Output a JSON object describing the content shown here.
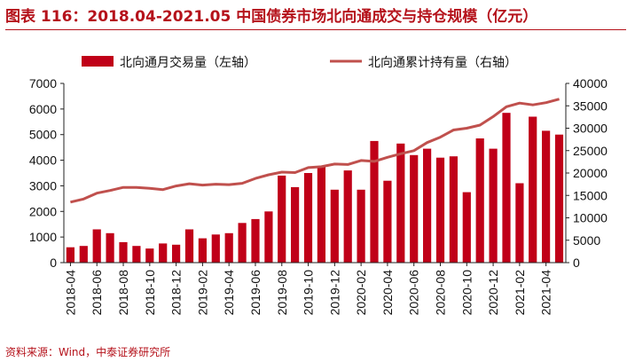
{
  "header": {
    "title": "图表 116：2018.04-2021.05 中国债券市场北向通成交与持仓规模（亿元）"
  },
  "footer": {
    "source": "资料来源：Wind，中泰证券研究所"
  },
  "colors": {
    "bar": "#c00018",
    "line": "#c0504d",
    "title": "#b5121b"
  },
  "chart_data": {
    "type": "bar+line",
    "x_tick_labels": [
      "2018-04",
      "2018-06",
      "2018-08",
      "2018-10",
      "2018-12",
      "2019-02",
      "2019-04",
      "2019-06",
      "2019-08",
      "2019-10",
      "2019-12",
      "2020-02",
      "2020-04",
      "2020-06",
      "2020-08",
      "2020-10",
      "2020-12",
      "2021-02",
      "2021-04"
    ],
    "categories": [
      "2018-04",
      "2018-05",
      "2018-06",
      "2018-07",
      "2018-08",
      "2018-09",
      "2018-10",
      "2018-11",
      "2018-12",
      "2019-01",
      "2019-02",
      "2019-03",
      "2019-04",
      "2019-05",
      "2019-06",
      "2019-07",
      "2019-08",
      "2019-09",
      "2019-10",
      "2019-11",
      "2019-12",
      "2020-01",
      "2020-02",
      "2020-03",
      "2020-04",
      "2020-05",
      "2020-06",
      "2020-07",
      "2020-08",
      "2020-09",
      "2020-10",
      "2020-11",
      "2020-12",
      "2021-01",
      "2021-02",
      "2021-03",
      "2021-04",
      "2021-05"
    ],
    "series": [
      {
        "name": "北向通月交易量（左轴）",
        "kind": "bar",
        "axis": "left",
        "values": [
          600,
          650,
          1300,
          1150,
          800,
          650,
          550,
          750,
          700,
          1300,
          950,
          1100,
          1150,
          1550,
          1700,
          2000,
          3400,
          2950,
          3500,
          3750,
          2850,
          3600,
          2850,
          4750,
          3200,
          4650,
          4200,
          4450,
          4100,
          4150,
          2750,
          4850,
          4450,
          5850,
          3100,
          5700,
          5150,
          5000
        ]
      },
      {
        "name": "北向通累计持有量（右轴）",
        "kind": "line",
        "axis": "right",
        "values": [
          13500,
          14200,
          15500,
          16100,
          16800,
          16800,
          16600,
          16300,
          17100,
          17600,
          17300,
          17500,
          17400,
          17700,
          18800,
          19600,
          20200,
          20100,
          21200,
          21400,
          22000,
          21900,
          22800,
          22600,
          23500,
          24300,
          25000,
          26800,
          28000,
          29600,
          30000,
          30700,
          32600,
          34800,
          35600,
          35200,
          35700,
          36500
        ]
      }
    ],
    "left_axis": {
      "ylim": [
        0,
        7000
      ],
      "ticks": [
        "0",
        "1000",
        "2000",
        "3000",
        "4000",
        "5000",
        "6000",
        "7000"
      ]
    },
    "right_axis": {
      "ylim": [
        0,
        40000
      ],
      "ticks": [
        "0",
        "5000",
        "10000",
        "15000",
        "20000",
        "25000",
        "30000",
        "35000",
        "40000"
      ]
    },
    "legend": {
      "bar_label": "北向通月交易量（左轴）",
      "line_label": "北向通累计持有量（右轴）"
    }
  }
}
